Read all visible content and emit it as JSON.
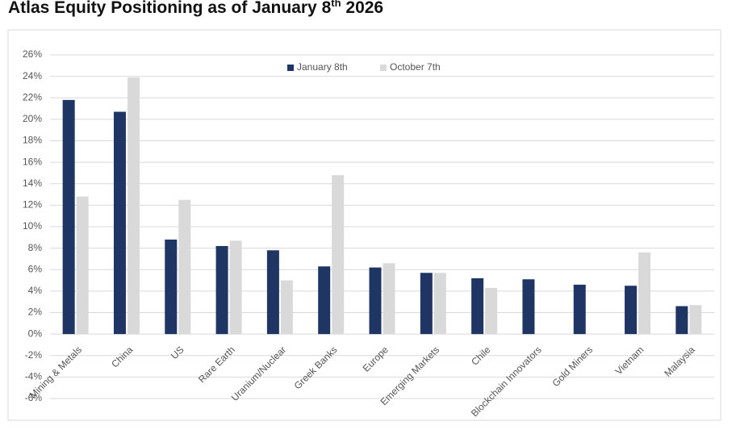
{
  "chart_data": {
    "type": "bar",
    "title": "Atlas Equity Positioning as of January 8",
    "title_superscript": "th",
    "title_end": "2026",
    "categories": [
      "Mining & Metals",
      "China",
      "US",
      "Rare Earth",
      "Uranium/Nuclear",
      "Greek Banks",
      "Europe",
      "Emerging Markets",
      "Chile",
      "Blockchain Innovators",
      "Gold Miners",
      "Vietnam",
      "Malaysia"
    ],
    "series": [
      {
        "name": "January 8th",
        "color": "#1f3564",
        "values": [
          21.8,
          20.7,
          8.8,
          8.2,
          7.8,
          6.3,
          6.2,
          5.7,
          5.2,
          5.1,
          4.6,
          4.5,
          2.6
        ]
      },
      {
        "name": "October 7th",
        "color": "#d9d9d9",
        "values": [
          12.8,
          23.9,
          12.5,
          8.7,
          5.0,
          14.8,
          6.6,
          5.7,
          4.3,
          null,
          null,
          7.6,
          2.7
        ]
      }
    ],
    "ylim": [
      -6,
      26
    ],
    "yticks": [
      {
        "value": -6,
        "label": "-6%"
      },
      {
        "value": -4,
        "label": "-4%"
      },
      {
        "value": -2,
        "label": "-2%"
      },
      {
        "value": 0,
        "label": "0%"
      },
      {
        "value": 2,
        "label": "2%"
      },
      {
        "value": 4,
        "label": "4%"
      },
      {
        "value": 6,
        "label": "6%"
      },
      {
        "value": 8,
        "label": "8%"
      },
      {
        "value": 10,
        "label": "10%"
      },
      {
        "value": 12,
        "label": "12%"
      },
      {
        "value": 14,
        "label": "14%"
      },
      {
        "value": 16,
        "label": "16%"
      },
      {
        "value": 18,
        "label": "18%"
      },
      {
        "value": 20,
        "label": "20%"
      },
      {
        "value": 22,
        "label": "22%"
      },
      {
        "value": 24,
        "label": "24%"
      },
      {
        "value": 26,
        "label": "26%"
      }
    ],
    "grid": true,
    "legend": "top"
  }
}
